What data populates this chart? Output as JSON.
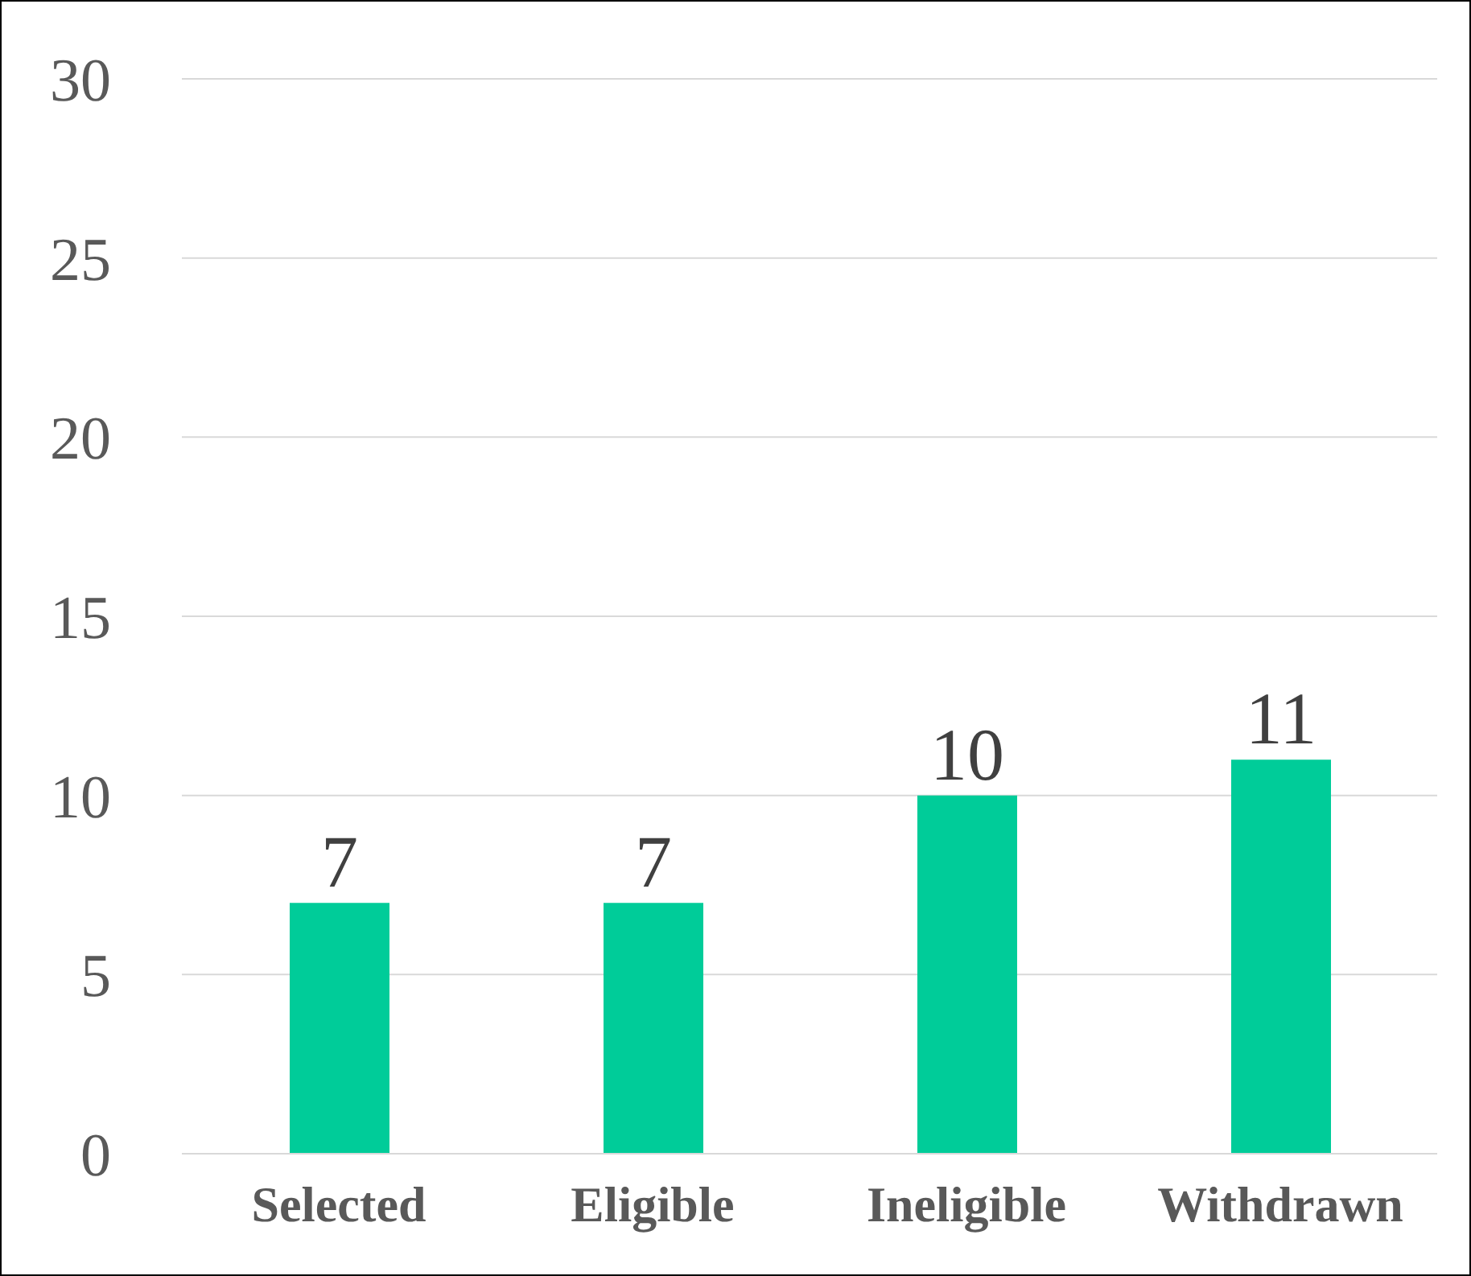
{
  "chart_data": {
    "type": "bar",
    "categories": [
      "Selected",
      "Eligible",
      "Ineligible",
      "Withdrawn"
    ],
    "values": [
      7,
      7,
      10,
      11
    ],
    "color": "#00cc99",
    "ylim": [
      0,
      30
    ],
    "yticks": [
      0,
      5,
      10,
      15,
      20,
      25,
      30
    ],
    "grid": "y",
    "data_labels": true,
    "legend": false
  }
}
